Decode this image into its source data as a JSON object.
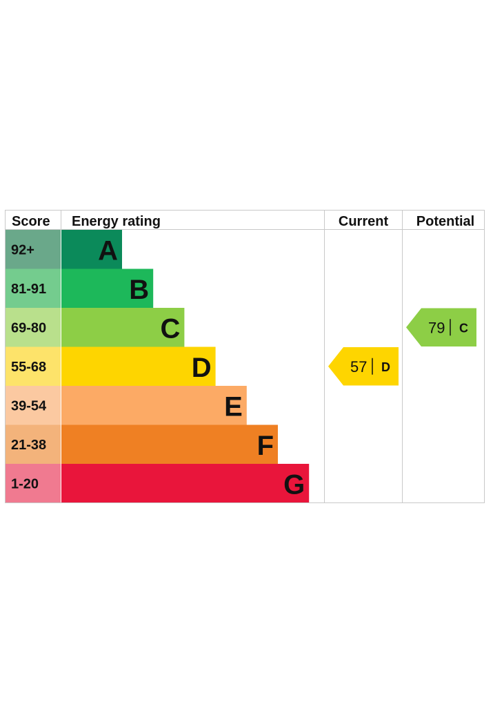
{
  "headers": {
    "score": "Score",
    "rating": "Energy rating",
    "current": "Current",
    "potential": "Potential"
  },
  "chart_data": {
    "type": "bar",
    "bands": [
      {
        "score": "92+",
        "letter": "A",
        "color": "#0b8a5a",
        "score_bg": "#6aa88a",
        "rank": 1
      },
      {
        "score": "81-91",
        "letter": "B",
        "color": "#1db85a",
        "score_bg": "#74cc8e",
        "rank": 2
      },
      {
        "score": "69-80",
        "letter": "C",
        "color": "#8dce46",
        "score_bg": "#b9e08c",
        "rank": 3
      },
      {
        "score": "55-68",
        "letter": "D",
        "color": "#fed500",
        "score_bg": "#fde36a",
        "rank": 4
      },
      {
        "score": "39-54",
        "letter": "E",
        "color": "#fcaa65",
        "score_bg": "#fbc9a1",
        "rank": 5
      },
      {
        "score": "21-38",
        "letter": "F",
        "color": "#ef8023",
        "score_bg": "#f3b37b",
        "rank": 6
      },
      {
        "score": "1-20",
        "letter": "G",
        "color": "#e9153b",
        "score_bg": "#f07a90",
        "rank": 7
      }
    ],
    "current": {
      "value": "57",
      "letter": "D",
      "color": "#fed500"
    },
    "potential": {
      "value": "79",
      "letter": "C",
      "color": "#8dce46"
    }
  }
}
